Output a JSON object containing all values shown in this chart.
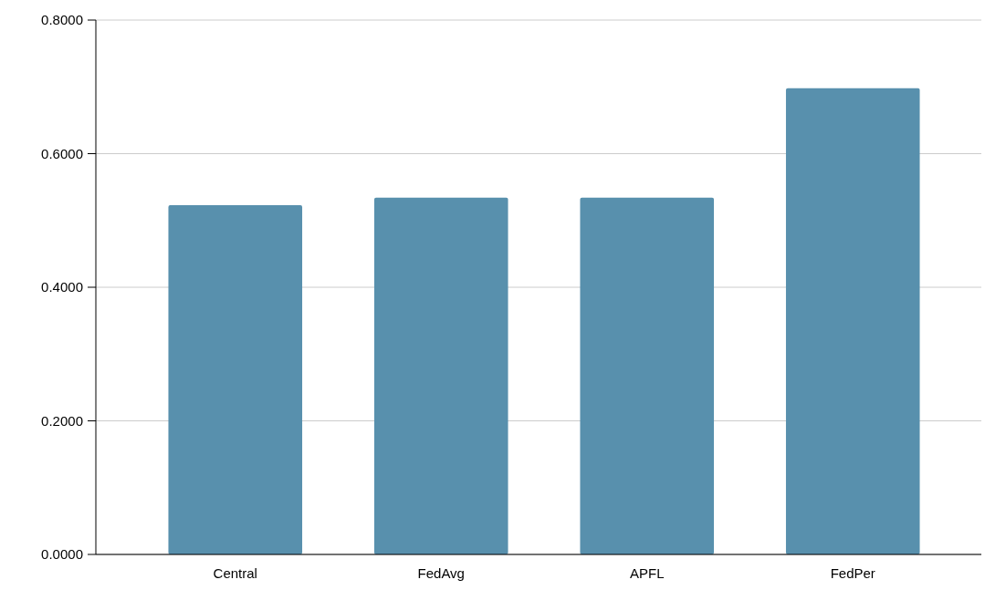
{
  "chart_data": {
    "type": "bar",
    "categories": [
      "Central",
      "FedAvg",
      "APFL",
      "FedPer"
    ],
    "values": [
      0.523,
      0.534,
      0.534,
      0.698
    ],
    "color": "#5890ad",
    "ylim": [
      0,
      0.8
    ],
    "yticks": [
      {
        "value": 0,
        "label": "0.0000"
      },
      {
        "value": 0.2,
        "label": "0.2000"
      },
      {
        "value": 0.4,
        "label": "0.4000"
      },
      {
        "value": 0.6,
        "label": "0.6000"
      },
      {
        "value": 0.8,
        "label": "0.8000"
      }
    ],
    "grid": "y"
  }
}
